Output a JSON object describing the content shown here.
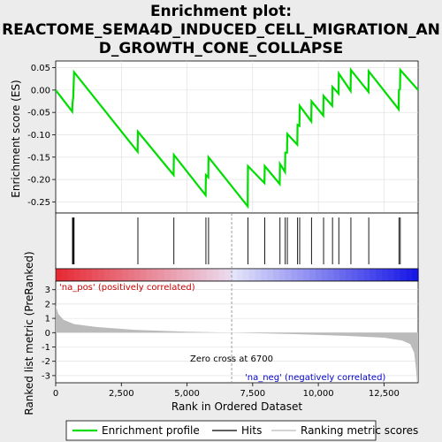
{
  "chart_data": {
    "type": "line",
    "title_lines": [
      "Enrichment plot:",
      "REACTOME_SEMA4D_INDUCED_CELL_MIGRATION_AN",
      "D_GROWTH_CONE_COLLAPSE"
    ],
    "ylabel_top": "Enrichment score (ES)",
    "ylabel_bottom": "Ranked list metric (PreRanked)",
    "xlabel": "Rank in Ordered Dataset",
    "es_yticks": [
      "0.05",
      "0.00",
      "-0.05",
      "-0.10",
      "-0.15",
      "-0.20",
      "-0.25"
    ],
    "metric_yticks": [
      "3",
      "2",
      "1",
      "0",
      "-1",
      "-2",
      "-3"
    ],
    "xticks": [
      "0",
      "2,500",
      "5,000",
      "7,500",
      "10,000",
      "12,500"
    ],
    "xlim": [
      0,
      13800
    ],
    "es_ylim": [
      -0.275,
      0.065
    ],
    "metric_ylim": [
      -3.5,
      3.6
    ],
    "hits": [
      640,
      670,
      700,
      3130,
      4500,
      5720,
      5820,
      7320,
      7960,
      8540,
      8740,
      8820,
      9210,
      9290,
      9740,
      10200,
      10540,
      10780,
      11240,
      11920,
      13070,
      13120
    ],
    "series": [
      {
        "name": "Enrichment profile",
        "color": "#00dd00",
        "points": [
          [
            0,
            0.0
          ],
          [
            630,
            -0.048
          ],
          [
            640,
            -0.03
          ],
          [
            670,
            -0.015
          ],
          [
            700,
            0.04
          ],
          [
            3120,
            -0.138
          ],
          [
            3130,
            -0.093
          ],
          [
            4490,
            -0.19
          ],
          [
            4500,
            -0.145
          ],
          [
            5710,
            -0.235
          ],
          [
            5720,
            -0.19
          ],
          [
            5810,
            -0.195
          ],
          [
            5820,
            -0.15
          ],
          [
            7310,
            -0.26
          ],
          [
            7320,
            -0.17
          ],
          [
            7950,
            -0.208
          ],
          [
            7960,
            -0.17
          ],
          [
            8530,
            -0.21
          ],
          [
            8540,
            -0.165
          ],
          [
            8730,
            -0.183
          ],
          [
            8740,
            -0.14
          ],
          [
            8810,
            -0.14
          ],
          [
            8820,
            -0.098
          ],
          [
            9200,
            -0.122
          ],
          [
            9210,
            -0.078
          ],
          [
            9280,
            -0.08
          ],
          [
            9290,
            -0.035
          ],
          [
            9730,
            -0.07
          ],
          [
            9740,
            -0.025
          ],
          [
            10190,
            -0.057
          ],
          [
            10200,
            -0.013
          ],
          [
            10530,
            -0.035
          ],
          [
            10540,
            0.007
          ],
          [
            10770,
            -0.008
          ],
          [
            10780,
            0.037
          ],
          [
            11230,
            -0.002
          ],
          [
            11240,
            0.045
          ],
          [
            11910,
            -0.004
          ],
          [
            11920,
            0.042
          ],
          [
            13060,
            -0.043
          ],
          [
            13070,
            0.0
          ],
          [
            13110,
            0.002
          ],
          [
            13120,
            0.045
          ],
          [
            13800,
            0.0
          ]
        ]
      }
    ],
    "metric_profile": [
      [
        0,
        1.9
      ],
      [
        100,
        1.3
      ],
      [
        300,
        0.9
      ],
      [
        700,
        0.6
      ],
      [
        1500,
        0.4
      ],
      [
        3000,
        0.2
      ],
      [
        5000,
        0.06
      ],
      [
        6700,
        0.0
      ],
      [
        9000,
        -0.1
      ],
      [
        11000,
        -0.22
      ],
      [
        12500,
        -0.35
      ],
      [
        13200,
        -0.55
      ],
      [
        13500,
        -0.8
      ],
      [
        13650,
        -1.4
      ],
      [
        13720,
        -2.5
      ],
      [
        13760,
        -3.45
      ],
      [
        13800,
        -3.45
      ]
    ],
    "color_bar_zero_rank": 6700,
    "annotations": {
      "zero_cross": "Zero cross at 6700",
      "pos_label": "'na_pos' (positively correlated)",
      "neg_label": "'na_neg' (negatively correlated)"
    },
    "legend": [
      {
        "label": "Enrichment profile",
        "color": "#00dd00",
        "kind": "line"
      },
      {
        "label": "Hits",
        "color": "#000000",
        "kind": "line"
      },
      {
        "label": "Ranking metric scores",
        "color": "#bbbbbb",
        "kind": "line"
      }
    ],
    "legend_placement": "bottom",
    "grid": true
  }
}
